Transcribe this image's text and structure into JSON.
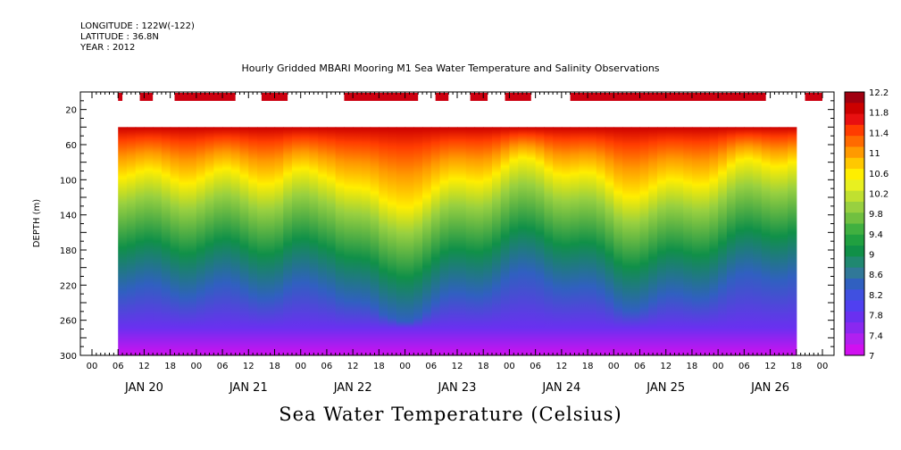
{
  "header": {
    "longitude": "LONGITUDE : 122W(-122)",
    "latitude": "LATITUDE : 36.8N",
    "year": "YEAR : 2012"
  },
  "chart_data": {
    "type": "heatmap",
    "title": "Hourly Gridded MBARI Mooring M1 Sea Water Temperature and Salinity Observations",
    "bottom_title": "Sea Water Temperature (Celsius)",
    "ylabel": "DEPTH (m)",
    "ylim": [
      300,
      0
    ],
    "y_ticks": [
      20,
      60,
      100,
      140,
      180,
      220,
      260,
      300
    ],
    "x_hour_labels": [
      "00",
      "06",
      "12",
      "18",
      "00",
      "06",
      "12",
      "18",
      "00",
      "06",
      "12",
      "18",
      "00",
      "06",
      "12",
      "18",
      "00",
      "06",
      "12",
      "18",
      "00",
      "06",
      "12",
      "18",
      "00",
      "06",
      "12",
      "18",
      "00",
      "06",
      "12",
      "18",
      "00",
      "06",
      "12",
      "18",
      "00",
      "06",
      "12",
      "18",
      "00",
      "06",
      "12",
      "18",
      "00",
      "06",
      "12",
      "18"
    ],
    "x_day_labels": [
      "JAN 20",
      "JAN 21",
      "JAN 22",
      "JAN 23",
      "JAN 24",
      "JAN 25",
      "JAN 26"
    ],
    "colorbar_labels": [
      "12.2",
      "11.8",
      "11.4",
      "11",
      "10.6",
      "10.2",
      "9.8",
      "9.4",
      "9",
      "8.6",
      "8.2",
      "7.8",
      "7.4",
      "7"
    ],
    "colorbar_colors": [
      "#a00010",
      "#cc0000",
      "#e81010",
      "#ff3c00",
      "#ff6a00",
      "#ff9a00",
      "#ffc800",
      "#ffee00",
      "#e8f020",
      "#c0e030",
      "#98d040",
      "#70c040",
      "#40b040",
      "#20a040",
      "#109048",
      "#208870",
      "#307898",
      "#3060c0",
      "#4050e0",
      "#5040f0",
      "#6a30f0",
      "#8a28f0",
      "#b020f0",
      "#d010f0"
    ],
    "data_start_hour": 6,
    "data_end_hour": 162,
    "hours_axis_max": 168,
    "series": [
      {
        "name": "profile_hour_6",
        "thermocline_depth": 85,
        "deep_temp": 7.4
      },
      {
        "name": "profile_hour_24",
        "thermocline_depth": 90,
        "deep_temp": 7.5
      },
      {
        "name": "profile_hour_42",
        "thermocline_depth": 110,
        "deep_temp": 7.6
      },
      {
        "name": "profile_hour_54",
        "thermocline_depth": 95,
        "deep_temp": 7.3
      },
      {
        "name": "profile_hour_66",
        "thermocline_depth": 120,
        "deep_temp": 7.4
      },
      {
        "name": "profile_hour_84",
        "thermocline_depth": 100,
        "deep_temp": 7.5
      },
      {
        "name": "profile_hour_102",
        "thermocline_depth": 90,
        "deep_temp": 7.6
      },
      {
        "name": "profile_hour_120",
        "thermocline_depth": 105,
        "deep_temp": 7.5
      },
      {
        "name": "profile_hour_138",
        "thermocline_depth": 95,
        "deep_temp": 7.3
      },
      {
        "name": "profile_hour_162",
        "thermocline_depth": 85,
        "deep_temp": 7.4
      }
    ]
  }
}
